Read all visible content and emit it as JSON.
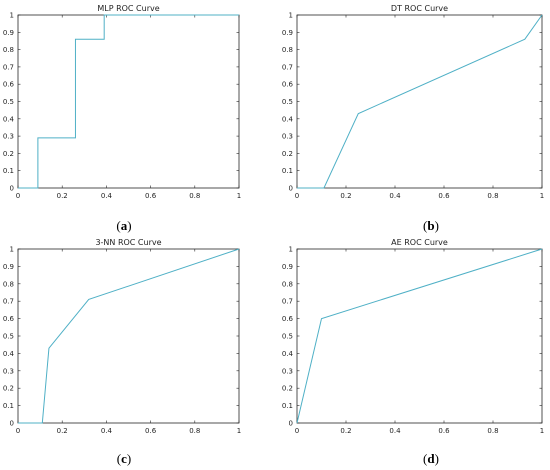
{
  "chart_data": [
    {
      "type": "line",
      "title": "MLP ROC Curve",
      "caption": "a",
      "xlim": [
        0,
        1
      ],
      "ylim": [
        0,
        1
      ],
      "xticks": [
        "0",
        "0.2",
        "0.4",
        "0.6",
        "0.8",
        "1"
      ],
      "yticks": [
        "0",
        "0.1",
        "0.2",
        "0.3",
        "0.4",
        "0.5",
        "0.6",
        "0.7",
        "0.8",
        "0.9",
        "1"
      ],
      "grid": false,
      "line_color": "#4fb0c6",
      "x": [
        0,
        0.09,
        0.09,
        0.26,
        0.26,
        0.39,
        0.39,
        1
      ],
      "y": [
        0,
        0,
        0.29,
        0.29,
        0.86,
        0.86,
        1,
        1
      ]
    },
    {
      "type": "line",
      "title": "DT ROC Curve",
      "caption": "b",
      "xlim": [
        0,
        1
      ],
      "ylim": [
        0,
        1
      ],
      "xticks": [
        "0",
        "0.2",
        "0.4",
        "0.6",
        "0.8",
        "1"
      ],
      "yticks": [
        "0",
        "0.1",
        "0.2",
        "0.3",
        "0.4",
        "0.5",
        "0.6",
        "0.7",
        "0.8",
        "0.9",
        "1"
      ],
      "grid": false,
      "line_color": "#4fb0c6",
      "x": [
        0,
        0.11,
        0.25,
        0.93,
        1
      ],
      "y": [
        0,
        0,
        0.43,
        0.86,
        1
      ]
    },
    {
      "type": "line",
      "title": "3-NN ROC Curve",
      "caption": "c",
      "xlim": [
        0,
        1
      ],
      "ylim": [
        0,
        1
      ],
      "xticks": [
        "0",
        "0.2",
        "0.4",
        "0.6",
        "0.8",
        "1"
      ],
      "yticks": [
        "0",
        "0.1",
        "0.2",
        "0.3",
        "0.4",
        "0.5",
        "0.6",
        "0.7",
        "0.8",
        "0.9",
        "1"
      ],
      "grid": false,
      "line_color": "#4fb0c6",
      "x": [
        0,
        0.11,
        0.14,
        0.32,
        1
      ],
      "y": [
        0,
        0,
        0.43,
        0.71,
        1
      ]
    },
    {
      "type": "line",
      "title": "AE ROC Curve",
      "caption": "d",
      "xlim": [
        0,
        1
      ],
      "ylim": [
        0,
        1
      ],
      "xticks": [
        "0",
        "0.2",
        "0.4",
        "0.6",
        "0.8",
        "1"
      ],
      "yticks": [
        "0",
        "0.1",
        "0.2",
        "0.3",
        "0.4",
        "0.5",
        "0.6",
        "0.7",
        "0.8",
        "0.9",
        "1"
      ],
      "grid": false,
      "line_color": "#4fb0c6",
      "x": [
        0,
        0.1,
        1
      ],
      "y": [
        0,
        0.6,
        1
      ]
    }
  ]
}
